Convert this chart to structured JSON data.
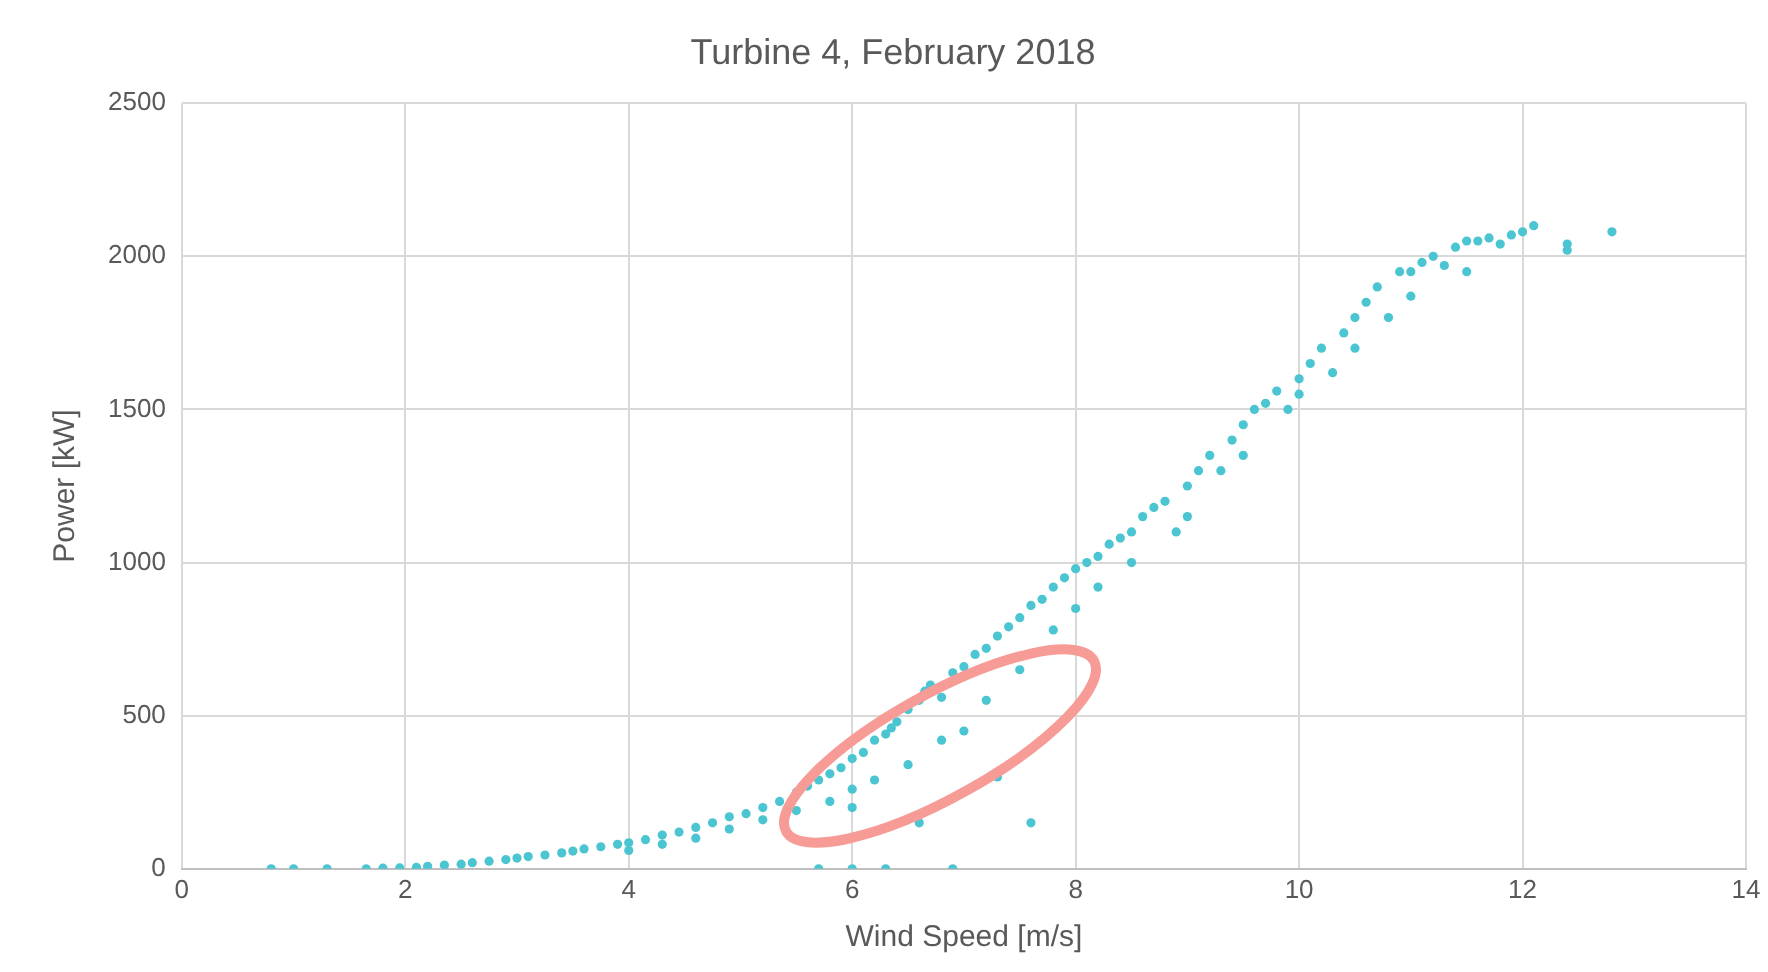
{
  "chart_data": {
    "type": "scatter",
    "title": "Turbine 4, February 2018",
    "xlabel": "Wind Speed [m/s]",
    "ylabel": "Power [kW]",
    "xlim": [
      0,
      14
    ],
    "xticks": [
      0,
      2,
      4,
      6,
      8,
      10,
      12,
      14
    ],
    "ylim": [
      0,
      2500
    ],
    "yticks": [
      0,
      500,
      1000,
      1500,
      2000,
      2500
    ],
    "grid": true,
    "legend": false,
    "marker": "circle",
    "series": [
      {
        "color": "#4bc5d1",
        "x": [
          0.8,
          1.0,
          1.3,
          1.65,
          1.8,
          1.95,
          2.1,
          2.2,
          2.35,
          2.5,
          2.6,
          2.75,
          2.9,
          3.0,
          3.1,
          3.25,
          3.4,
          3.5,
          3.6,
          3.75,
          3.9,
          4.0,
          4.0,
          4.15,
          4.3,
          4.3,
          4.45,
          4.6,
          4.6,
          4.75,
          4.9,
          4.9,
          5.05,
          5.2,
          5.2,
          5.35,
          5.5,
          5.5,
          5.6,
          5.7,
          5.8,
          5.8,
          5.9,
          6.0,
          6.0,
          6.0,
          6.1,
          6.2,
          6.2,
          6.3,
          6.35,
          6.4,
          6.5,
          6.5,
          6.6,
          6.65,
          6.7,
          6.8,
          6.8,
          6.9,
          7.0,
          7.0,
          7.1,
          7.2,
          7.2,
          7.3,
          7.4,
          7.5,
          7.5,
          7.6,
          7.7,
          7.8,
          7.8,
          7.9,
          8.0,
          8.0,
          8.1,
          8.2,
          8.2,
          8.3,
          8.4,
          8.5,
          8.5,
          8.6,
          8.7,
          8.8,
          8.9,
          9.0,
          9.0,
          9.1,
          9.2,
          9.3,
          9.4,
          9.5,
          9.5,
          9.6,
          9.7,
          9.8,
          9.9,
          10.0,
          10.0,
          10.1,
          10.2,
          10.3,
          10.4,
          10.5,
          10.5,
          10.6,
          10.7,
          10.8,
          10.9,
          11.0,
          11.0,
          11.1,
          11.2,
          11.3,
          11.4,
          11.5,
          11.5,
          11.6,
          11.7,
          11.8,
          11.9,
          12.0,
          12.1,
          12.4,
          12.4,
          12.8,
          5.7,
          6.0,
          6.3,
          6.9,
          7.6,
          6.6,
          7.3
        ],
        "values": [
          0,
          0,
          0,
          0,
          2,
          3,
          5,
          8,
          12,
          15,
          20,
          25,
          30,
          35,
          40,
          45,
          52,
          58,
          65,
          72,
          80,
          85,
          60,
          95,
          110,
          80,
          120,
          135,
          100,
          150,
          170,
          130,
          180,
          200,
          160,
          220,
          250,
          190,
          270,
          290,
          310,
          220,
          330,
          360,
          260,
          200,
          380,
          420,
          290,
          440,
          460,
          480,
          520,
          340,
          550,
          580,
          600,
          560,
          420,
          640,
          660,
          450,
          700,
          720,
          550,
          760,
          790,
          820,
          650,
          860,
          880,
          920,
          780,
          950,
          980,
          850,
          1000,
          1020,
          920,
          1060,
          1080,
          1100,
          1000,
          1150,
          1180,
          1200,
          1100,
          1250,
          1150,
          1300,
          1350,
          1300,
          1400,
          1450,
          1350,
          1500,
          1520,
          1560,
          1500,
          1600,
          1550,
          1650,
          1700,
          1620,
          1750,
          1800,
          1700,
          1850,
          1900,
          1800,
          1950,
          1950,
          1870,
          1980,
          2000,
          1970,
          2030,
          2050,
          1950,
          2050,
          2060,
          2040,
          2070,
          2080,
          2100,
          2040,
          2020,
          2080,
          0,
          0,
          0,
          0,
          150,
          150,
          300
        ]
      }
    ]
  }
}
